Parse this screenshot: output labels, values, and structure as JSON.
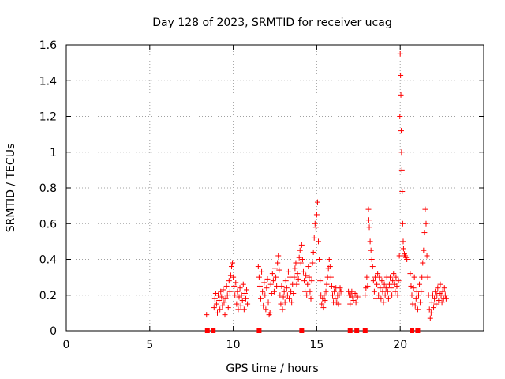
{
  "chart_data": {
    "type": "scatter",
    "title": "Day 128 of 2023, SRMTID for receiver ucag",
    "xlabel": "GPS time / hours",
    "ylabel": "SRMTID / TECUs",
    "xlim": [
      0,
      25
    ],
    "ylim": [
      0,
      1.6
    ],
    "xticks": [
      0,
      5,
      10,
      15,
      20
    ],
    "yticks": [
      0,
      0.2,
      0.4,
      0.6,
      0.8,
      1,
      1.2,
      1.4,
      1.6
    ],
    "xtick_labels": [
      "0",
      "5",
      "10",
      "15",
      "20"
    ],
    "ytick_labels": [
      "0",
      "0.2",
      "0.4",
      "0.6",
      "0.8",
      "1",
      "1.2",
      "1.4",
      "1.6"
    ],
    "grid": true,
    "marker": "+",
    "color": "#ff0000",
    "series": [
      {
        "name": "SRMTID",
        "points": [
          [
            8.4,
            0.09
          ],
          [
            8.85,
            0.13
          ],
          [
            8.9,
            0.18
          ],
          [
            8.95,
            0.21
          ],
          [
            9.0,
            0.15
          ],
          [
            9.05,
            0.1
          ],
          [
            9.1,
            0.2
          ],
          [
            9.15,
            0.17
          ],
          [
            9.2,
            0.12
          ],
          [
            9.25,
            0.22
          ],
          [
            9.3,
            0.19
          ],
          [
            9.35,
            0.14
          ],
          [
            9.4,
            0.23
          ],
          [
            9.45,
            0.16
          ],
          [
            9.5,
            0.09
          ],
          [
            9.55,
            0.18
          ],
          [
            9.6,
            0.25
          ],
          [
            9.65,
            0.2
          ],
          [
            9.7,
            0.13
          ],
          [
            9.75,
            0.28
          ],
          [
            9.8,
            0.22
          ],
          [
            9.85,
            0.31
          ],
          [
            9.9,
            0.36
          ],
          [
            9.95,
            0.38
          ],
          [
            10.0,
            0.3
          ],
          [
            10.05,
            0.25
          ],
          [
            10.1,
            0.2
          ],
          [
            10.15,
            0.27
          ],
          [
            10.2,
            0.15
          ],
          [
            10.25,
            0.22
          ],
          [
            10.3,
            0.12
          ],
          [
            10.35,
            0.19
          ],
          [
            10.4,
            0.24
          ],
          [
            10.45,
            0.14
          ],
          [
            10.5,
            0.2
          ],
          [
            10.55,
            0.17
          ],
          [
            10.6,
            0.26
          ],
          [
            10.65,
            0.12
          ],
          [
            10.7,
            0.21
          ],
          [
            10.75,
            0.18
          ],
          [
            10.8,
            0.23
          ],
          [
            10.85,
            0.15
          ],
          [
            11.5,
            0.36
          ],
          [
            11.55,
            0.3
          ],
          [
            11.6,
            0.25
          ],
          [
            11.65,
            0.18
          ],
          [
            11.7,
            0.33
          ],
          [
            11.75,
            0.22
          ],
          [
            11.8,
            0.14
          ],
          [
            11.85,
            0.27
          ],
          [
            11.9,
            0.2
          ],
          [
            11.95,
            0.12
          ],
          [
            12.0,
            0.24
          ],
          [
            12.05,
            0.29
          ],
          [
            12.1,
            0.16
          ],
          [
            12.15,
            0.09
          ],
          [
            12.2,
            0.1
          ],
          [
            12.25,
            0.26
          ],
          [
            12.3,
            0.21
          ],
          [
            12.35,
            0.32
          ],
          [
            12.4,
            0.28
          ],
          [
            12.45,
            0.22
          ],
          [
            12.5,
            0.35
          ],
          [
            12.55,
            0.3
          ],
          [
            12.6,
            0.25
          ],
          [
            12.65,
            0.38
          ],
          [
            12.7,
            0.42
          ],
          [
            12.75,
            0.34
          ],
          [
            12.8,
            0.2
          ],
          [
            12.85,
            0.15
          ],
          [
            12.9,
            0.25
          ],
          [
            12.95,
            0.12
          ],
          [
            13.0,
            0.19
          ],
          [
            13.05,
            0.22
          ],
          [
            13.1,
            0.16
          ],
          [
            13.15,
            0.28
          ],
          [
            13.2,
            0.24
          ],
          [
            13.25,
            0.2
          ],
          [
            13.3,
            0.33
          ],
          [
            13.35,
            0.18
          ],
          [
            13.4,
            0.3
          ],
          [
            13.45,
            0.22
          ],
          [
            13.5,
            0.16
          ],
          [
            13.55,
            0.26
          ],
          [
            13.6,
            0.21
          ],
          [
            13.65,
            0.3
          ],
          [
            13.7,
            0.35
          ],
          [
            13.75,
            0.38
          ],
          [
            13.8,
            0.26
          ],
          [
            13.85,
            0.32
          ],
          [
            13.9,
            0.29
          ],
          [
            13.95,
            0.41
          ],
          [
            14.0,
            0.45
          ],
          [
            14.05,
            0.38
          ],
          [
            14.1,
            0.48
          ],
          [
            14.15,
            0.4
          ],
          [
            14.2,
            0.33
          ],
          [
            14.25,
            0.28
          ],
          [
            14.3,
            0.22
          ],
          [
            14.35,
            0.31
          ],
          [
            14.4,
            0.2
          ],
          [
            14.45,
            0.26
          ],
          [
            14.5,
            0.36
          ],
          [
            14.55,
            0.3
          ],
          [
            14.6,
            0.22
          ],
          [
            14.65,
            0.18
          ],
          [
            14.7,
            0.28
          ],
          [
            14.75,
            0.38
          ],
          [
            14.8,
            0.44
          ],
          [
            14.85,
            0.52
          ],
          [
            14.9,
            0.6
          ],
          [
            14.95,
            0.58
          ],
          [
            15.0,
            0.65
          ],
          [
            15.05,
            0.72
          ],
          [
            15.1,
            0.5
          ],
          [
            15.15,
            0.4
          ],
          [
            15.2,
            0.28
          ],
          [
            15.25,
            0.2
          ],
          [
            15.3,
            0.15
          ],
          [
            15.35,
            0.18
          ],
          [
            15.4,
            0.13
          ],
          [
            15.45,
            0.2
          ],
          [
            15.5,
            0.17
          ],
          [
            15.55,
            0.22
          ],
          [
            15.6,
            0.26
          ],
          [
            15.65,
            0.3
          ],
          [
            15.7,
            0.35
          ],
          [
            15.75,
            0.4
          ],
          [
            15.8,
            0.36
          ],
          [
            15.85,
            0.3
          ],
          [
            15.9,
            0.25
          ],
          [
            15.95,
            0.2
          ],
          [
            16.0,
            0.16
          ],
          [
            16.05,
            0.22
          ],
          [
            16.1,
            0.18
          ],
          [
            16.15,
            0.24
          ],
          [
            16.2,
            0.16
          ],
          [
            16.25,
            0.2
          ],
          [
            16.3,
            0.15
          ],
          [
            16.35,
            0.2
          ],
          [
            16.4,
            0.24
          ],
          [
            16.45,
            0.22
          ],
          [
            16.9,
            0.22
          ],
          [
            16.95,
            0.2
          ],
          [
            17.0,
            0.15
          ],
          [
            17.05,
            0.2
          ],
          [
            17.1,
            0.22
          ],
          [
            17.15,
            0.19
          ],
          [
            17.2,
            0.17
          ],
          [
            17.3,
            0.21
          ],
          [
            17.35,
            0.16
          ],
          [
            17.4,
            0.2
          ],
          [
            17.45,
            0.19
          ],
          [
            17.9,
            0.2
          ],
          [
            17.95,
            0.24
          ],
          [
            18.0,
            0.3
          ],
          [
            18.05,
            0.25
          ],
          [
            18.1,
            0.68
          ],
          [
            18.12,
            0.62
          ],
          [
            18.15,
            0.58
          ],
          [
            18.2,
            0.5
          ],
          [
            18.25,
            0.45
          ],
          [
            18.3,
            0.4
          ],
          [
            18.35,
            0.36
          ],
          [
            18.4,
            0.28
          ],
          [
            18.45,
            0.22
          ],
          [
            18.5,
            0.3
          ],
          [
            18.55,
            0.18
          ],
          [
            18.6,
            0.26
          ],
          [
            18.65,
            0.32
          ],
          [
            18.7,
            0.2
          ],
          [
            18.75,
            0.3
          ],
          [
            18.8,
            0.24
          ],
          [
            18.85,
            0.18
          ],
          [
            18.9,
            0.28
          ],
          [
            18.95,
            0.22
          ],
          [
            19.0,
            0.16
          ],
          [
            19.05,
            0.26
          ],
          [
            19.1,
            0.2
          ],
          [
            19.15,
            0.24
          ],
          [
            19.2,
            0.3
          ],
          [
            19.25,
            0.22
          ],
          [
            19.3,
            0.18
          ],
          [
            19.35,
            0.26
          ],
          [
            19.4,
            0.3
          ],
          [
            19.45,
            0.24
          ],
          [
            19.5,
            0.2
          ],
          [
            19.55,
            0.28
          ],
          [
            19.6,
            0.32
          ],
          [
            19.65,
            0.26
          ],
          [
            19.7,
            0.22
          ],
          [
            19.75,
            0.3
          ],
          [
            19.8,
            0.25
          ],
          [
            19.85,
            0.2
          ],
          [
            19.9,
            0.28
          ],
          [
            19.95,
            0.42
          ],
          [
            19.98,
            1.2
          ],
          [
            20.0,
            1.55
          ],
          [
            20.02,
            1.43
          ],
          [
            20.04,
            1.32
          ],
          [
            20.06,
            1.12
          ],
          [
            20.08,
            1.0
          ],
          [
            20.1,
            0.9
          ],
          [
            20.12,
            0.78
          ],
          [
            20.15,
            0.6
          ],
          [
            20.18,
            0.5
          ],
          [
            20.2,
            0.46
          ],
          [
            20.25,
            0.43
          ],
          [
            20.3,
            0.42
          ],
          [
            20.35,
            0.41
          ],
          [
            20.4,
            0.4
          ],
          [
            20.6,
            0.32
          ],
          [
            20.65,
            0.25
          ],
          [
            20.7,
            0.2
          ],
          [
            20.75,
            0.15
          ],
          [
            20.8,
            0.24
          ],
          [
            20.85,
            0.3
          ],
          [
            20.9,
            0.14
          ],
          [
            20.95,
            0.18
          ],
          [
            21.0,
            0.22
          ],
          [
            21.05,
            0.12
          ],
          [
            21.1,
            0.2
          ],
          [
            21.15,
            0.26
          ],
          [
            21.2,
            0.16
          ],
          [
            21.25,
            0.22
          ],
          [
            21.3,
            0.3
          ],
          [
            21.35,
            0.38
          ],
          [
            21.4,
            0.45
          ],
          [
            21.45,
            0.55
          ],
          [
            21.5,
            0.68
          ],
          [
            21.55,
            0.6
          ],
          [
            21.6,
            0.42
          ],
          [
            21.65,
            0.3
          ],
          [
            21.7,
            0.2
          ],
          [
            21.75,
            0.12
          ],
          [
            21.8,
            0.07
          ],
          [
            21.85,
            0.1
          ],
          [
            21.9,
            0.16
          ],
          [
            21.95,
            0.2
          ],
          [
            22.0,
            0.13
          ],
          [
            22.05,
            0.18
          ],
          [
            22.1,
            0.22
          ],
          [
            22.15,
            0.15
          ],
          [
            22.2,
            0.2
          ],
          [
            22.25,
            0.24
          ],
          [
            22.3,
            0.17
          ],
          [
            22.35,
            0.21
          ],
          [
            22.4,
            0.26
          ],
          [
            22.45,
            0.2
          ],
          [
            22.5,
            0.16
          ],
          [
            22.55,
            0.22
          ],
          [
            22.6,
            0.18
          ],
          [
            22.65,
            0.24
          ],
          [
            22.7,
            0.2
          ],
          [
            22.75,
            0.18
          ]
        ]
      },
      {
        "name": "zero-level markers",
        "marker": "square",
        "points": [
          [
            8.45,
            0
          ],
          [
            8.8,
            0
          ],
          [
            11.55,
            0
          ],
          [
            14.1,
            0
          ],
          [
            17.0,
            0
          ],
          [
            17.4,
            0
          ],
          [
            17.9,
            0
          ],
          [
            20.7,
            0
          ],
          [
            21.05,
            0
          ]
        ]
      }
    ]
  }
}
